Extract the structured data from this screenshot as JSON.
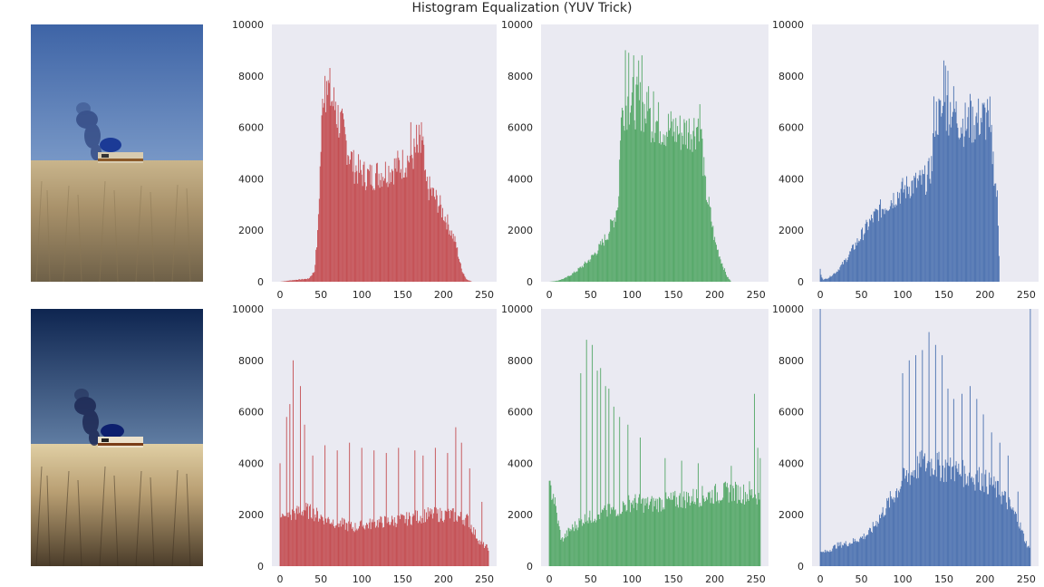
{
  "figure": {
    "title": "Histogram Equalization (YUV Trick)"
  },
  "colors": {
    "red": "#c44e52",
    "green": "#55a868",
    "blue": "#4c72b0",
    "panel_bg": "#eaeaf2"
  },
  "images": [
    {
      "name": "original-photo",
      "description_type": "photo",
      "sky_top": "#3e64a6",
      "sky_bottom": "#aac4e2"
    },
    {
      "name": "equalized-photo",
      "description_type": "photo",
      "sky_top": "#0e2550",
      "sky_bottom": "#a9cbec"
    }
  ],
  "chart_data": [
    {
      "type": "bar",
      "name": "original-red-histogram",
      "color": "#c44e52",
      "xlim": [
        -10,
        265
      ],
      "ylim": [
        0,
        10000
      ],
      "xticks": [
        0,
        50,
        100,
        150,
        200,
        250
      ],
      "yticks": [
        0,
        2000,
        4000,
        6000,
        8000,
        10000
      ],
      "profile": [
        [
          0,
          0
        ],
        [
          15,
          60
        ],
        [
          35,
          120
        ],
        [
          42,
          400
        ],
        [
          46,
          1800
        ],
        [
          50,
          5200
        ],
        [
          53,
          7600
        ],
        [
          60,
          7400
        ],
        [
          70,
          6500
        ],
        [
          80,
          5500
        ],
        [
          90,
          4500
        ],
        [
          100,
          4200
        ],
        [
          110,
          4100
        ],
        [
          130,
          4300
        ],
        [
          150,
          4600
        ],
        [
          165,
          5000
        ],
        [
          175,
          5200
        ],
        [
          178,
          3800
        ],
        [
          185,
          3500
        ],
        [
          195,
          3000
        ],
        [
          205,
          2300
        ],
        [
          215,
          1500
        ],
        [
          222,
          500
        ],
        [
          228,
          100
        ],
        [
          235,
          0
        ],
        [
          255,
          0
        ]
      ],
      "spikes": [
        [
          55,
          8000
        ],
        [
          57,
          7800
        ],
        [
          68,
          7000
        ],
        [
          160,
          6200
        ],
        [
          167,
          6100
        ],
        [
          170,
          6100
        ],
        [
          173,
          6200
        ]
      ]
    },
    {
      "type": "bar",
      "name": "original-green-histogram",
      "color": "#55a868",
      "xlim": [
        -10,
        265
      ],
      "ylim": [
        0,
        10000
      ],
      "xticks": [
        0,
        50,
        100,
        150,
        200,
        250
      ],
      "yticks": [
        0,
        2000,
        4000,
        6000,
        8000,
        10000
      ],
      "profile": [
        [
          0,
          0
        ],
        [
          10,
          40
        ],
        [
          20,
          150
        ],
        [
          30,
          350
        ],
        [
          40,
          600
        ],
        [
          50,
          900
        ],
        [
          60,
          1300
        ],
        [
          70,
          1800
        ],
        [
          80,
          2600
        ],
        [
          84,
          3300
        ],
        [
          86,
          6000
        ],
        [
          90,
          6900
        ],
        [
          100,
          7000
        ],
        [
          110,
          6900
        ],
        [
          120,
          6400
        ],
        [
          130,
          6200
        ],
        [
          140,
          6000
        ],
        [
          150,
          5900
        ],
        [
          160,
          5800
        ],
        [
          170,
          5900
        ],
        [
          178,
          6000
        ],
        [
          182,
          6500
        ],
        [
          188,
          3800
        ],
        [
          195,
          2600
        ],
        [
          200,
          1600
        ],
        [
          208,
          800
        ],
        [
          215,
          200
        ],
        [
          220,
          0
        ],
        [
          255,
          0
        ]
      ],
      "spikes": [
        [
          92,
          9000
        ],
        [
          96,
          8900
        ],
        [
          102,
          8800
        ],
        [
          108,
          8600
        ],
        [
          112,
          8800
        ],
        [
          120,
          7600
        ],
        [
          126,
          7400
        ],
        [
          182,
          6900
        ]
      ]
    },
    {
      "type": "bar",
      "name": "original-blue-histogram",
      "color": "#4c72b0",
      "xlim": [
        -10,
        265
      ],
      "ylim": [
        0,
        10000
      ],
      "xticks": [
        0,
        50,
        100,
        150,
        200,
        250
      ],
      "yticks": [
        0,
        2000,
        4000,
        6000,
        8000,
        10000
      ],
      "profile": [
        [
          0,
          300
        ],
        [
          4,
          80
        ],
        [
          10,
          150
        ],
        [
          20,
          400
        ],
        [
          30,
          800
        ],
        [
          40,
          1300
        ],
        [
          50,
          1800
        ],
        [
          60,
          2300
        ],
        [
          70,
          2700
        ],
        [
          80,
          3000
        ],
        [
          90,
          3300
        ],
        [
          100,
          3550
        ],
        [
          110,
          3750
        ],
        [
          120,
          3850
        ],
        [
          130,
          4000
        ],
        [
          136,
          4600
        ],
        [
          138,
          6400
        ],
        [
          150,
          6500
        ],
        [
          160,
          6800
        ],
        [
          170,
          6200
        ],
        [
          180,
          6100
        ],
        [
          190,
          6300
        ],
        [
          200,
          6400
        ],
        [
          208,
          5400
        ],
        [
          212,
          4000
        ],
        [
          215,
          3200
        ],
        [
          218,
          0
        ],
        [
          255,
          0
        ]
      ],
      "spikes": [
        [
          0,
          500
        ],
        [
          150,
          8600
        ],
        [
          152,
          8400
        ],
        [
          155,
          8200
        ],
        [
          162,
          7600
        ],
        [
          182,
          7300
        ],
        [
          203,
          7100
        ],
        [
          206,
          7200
        ]
      ]
    },
    {
      "type": "bar",
      "name": "equalized-red-histogram",
      "color": "#c44e52",
      "xlim": [
        -10,
        265
      ],
      "ylim": [
        0,
        10000
      ],
      "xticks": [
        0,
        50,
        100,
        150,
        200,
        250
      ],
      "yticks": [
        0,
        2000,
        4000,
        6000,
        8000,
        10000
      ],
      "profile": [
        [
          0,
          2200
        ],
        [
          5,
          1800
        ],
        [
          15,
          2000
        ],
        [
          30,
          2200
        ],
        [
          60,
          1800
        ],
        [
          90,
          1500
        ],
        [
          120,
          1700
        ],
        [
          150,
          1800
        ],
        [
          180,
          2000
        ],
        [
          210,
          2000
        ],
        [
          230,
          1800
        ],
        [
          245,
          900
        ],
        [
          255,
          700
        ]
      ],
      "spikes": [
        [
          0,
          4000
        ],
        [
          16,
          8000
        ],
        [
          12,
          6300
        ],
        [
          25,
          7000
        ],
        [
          8,
          5800
        ],
        [
          30,
          5500
        ],
        [
          40,
          4300
        ],
        [
          55,
          4700
        ],
        [
          70,
          4500
        ],
        [
          85,
          4800
        ],
        [
          100,
          4600
        ],
        [
          115,
          4500
        ],
        [
          130,
          4400
        ],
        [
          145,
          4600
        ],
        [
          165,
          4500
        ],
        [
          175,
          4300
        ],
        [
          190,
          4600
        ],
        [
          205,
          4400
        ],
        [
          215,
          5400
        ],
        [
          222,
          4800
        ],
        [
          232,
          3800
        ],
        [
          247,
          2500
        ],
        [
          256,
          10000
        ]
      ]
    },
    {
      "type": "bar",
      "name": "equalized-green-histogram",
      "color": "#55a868",
      "xlim": [
        -10,
        265
      ],
      "ylim": [
        0,
        10000
      ],
      "xticks": [
        0,
        50,
        100,
        150,
        200,
        250
      ],
      "yticks": [
        0,
        2000,
        4000,
        6000,
        8000,
        10000
      ],
      "profile": [
        [
          0,
          3000
        ],
        [
          5,
          2800
        ],
        [
          10,
          1800
        ],
        [
          15,
          1000
        ],
        [
          25,
          1400
        ],
        [
          40,
          1800
        ],
        [
          60,
          2000
        ],
        [
          80,
          2200
        ],
        [
          100,
          2500
        ],
        [
          120,
          2400
        ],
        [
          140,
          2500
        ],
        [
          160,
          2600
        ],
        [
          180,
          2700
        ],
        [
          200,
          2800
        ],
        [
          220,
          2900
        ],
        [
          240,
          2800
        ],
        [
          250,
          2800
        ],
        [
          255,
          2600
        ],
        [
          257,
          0
        ]
      ],
      "spikes": [
        [
          38,
          7500
        ],
        [
          45,
          8800
        ],
        [
          52,
          8600
        ],
        [
          58,
          7600
        ],
        [
          62,
          7700
        ],
        [
          68,
          7000
        ],
        [
          72,
          6900
        ],
        [
          78,
          6200
        ],
        [
          85,
          5800
        ],
        [
          95,
          5500
        ],
        [
          110,
          5000
        ],
        [
          140,
          4200
        ],
        [
          160,
          4100
        ],
        [
          180,
          4000
        ],
        [
          220,
          3900
        ],
        [
          242,
          3300
        ],
        [
          248,
          6700
        ],
        [
          252,
          4600
        ],
        [
          255,
          4200
        ]
      ]
    },
    {
      "type": "bar",
      "name": "equalized-blue-histogram",
      "color": "#4c72b0",
      "xlim": [
        -10,
        265
      ],
      "ylim": [
        0,
        10000
      ],
      "xticks": [
        0,
        50,
        100,
        150,
        200,
        250
      ],
      "yticks": [
        0,
        2000,
        4000,
        6000,
        8000,
        10000
      ],
      "profile": [
        [
          0,
          500
        ],
        [
          10,
          600
        ],
        [
          20,
          800
        ],
        [
          35,
          900
        ],
        [
          50,
          1100
        ],
        [
          60,
          1300
        ],
        [
          70,
          1800
        ],
        [
          80,
          2300
        ],
        [
          90,
          2800
        ],
        [
          100,
          3300
        ],
        [
          110,
          3600
        ],
        [
          120,
          3900
        ],
        [
          135,
          4000
        ],
        [
          150,
          3800
        ],
        [
          165,
          3700
        ],
        [
          180,
          3500
        ],
        [
          195,
          3400
        ],
        [
          210,
          3100
        ],
        [
          225,
          2600
        ],
        [
          240,
          1800
        ],
        [
          250,
          900
        ],
        [
          255,
          600
        ]
      ],
      "spikes": [
        [
          0,
          10000
        ],
        [
          100,
          7500
        ],
        [
          108,
          8000
        ],
        [
          116,
          8200
        ],
        [
          124,
          8400
        ],
        [
          132,
          9100
        ],
        [
          140,
          8600
        ],
        [
          148,
          8200
        ],
        [
          155,
          6900
        ],
        [
          162,
          6500
        ],
        [
          172,
          6700
        ],
        [
          182,
          7000
        ],
        [
          190,
          6500
        ],
        [
          198,
          5900
        ],
        [
          208,
          5200
        ],
        [
          218,
          4800
        ],
        [
          228,
          4300
        ],
        [
          240,
          2900
        ],
        [
          255,
          10000
        ]
      ]
    }
  ]
}
